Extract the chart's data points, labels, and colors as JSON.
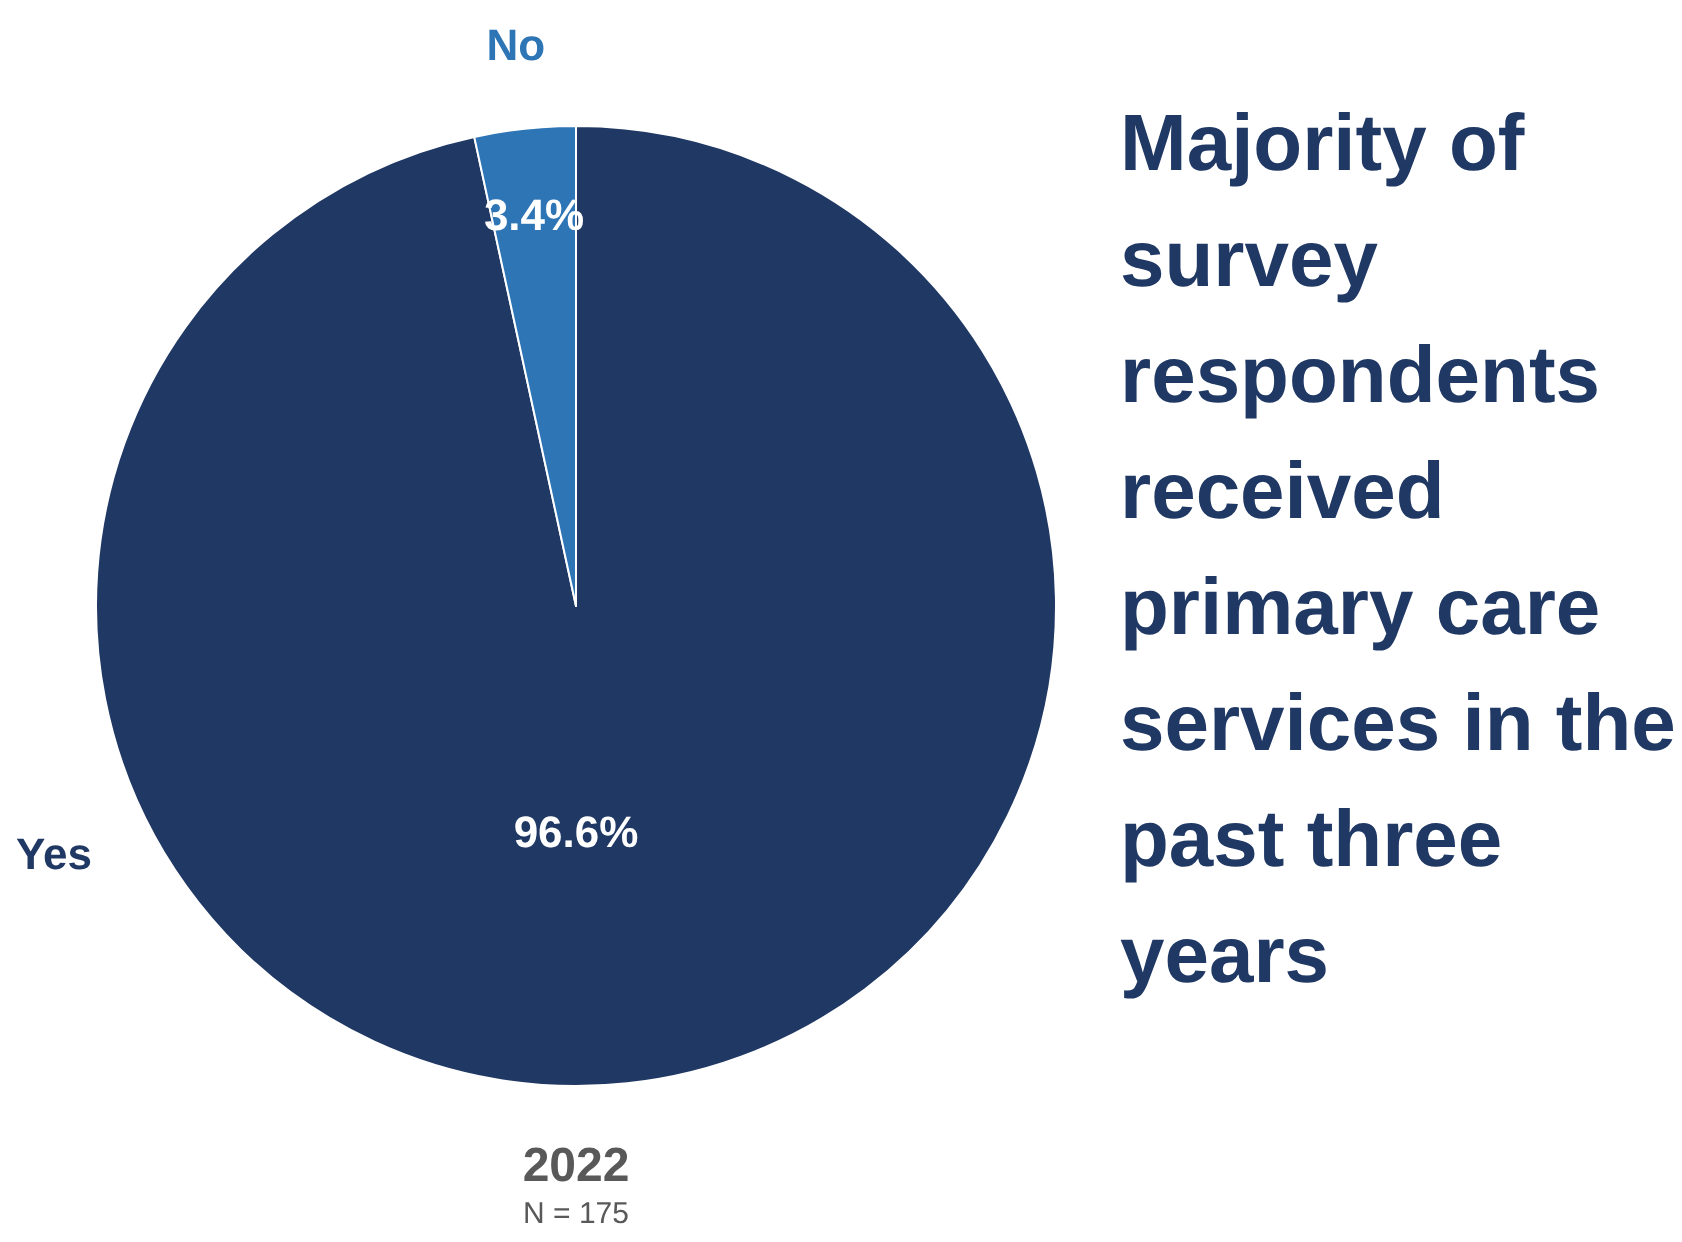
{
  "chart_data": {
    "type": "pie",
    "title": "Majority of survey respondents received primary care services in the past three years",
    "subtitle": "2022",
    "annotations": [
      "N = 175"
    ],
    "categories": [
      "Yes",
      "No"
    ],
    "values": [
      96.6,
      3.4
    ],
    "colors": [
      "#203864",
      "#2e75b6"
    ],
    "value_labels": [
      "96.6%",
      "3.4%"
    ],
    "legend": false
  }
}
